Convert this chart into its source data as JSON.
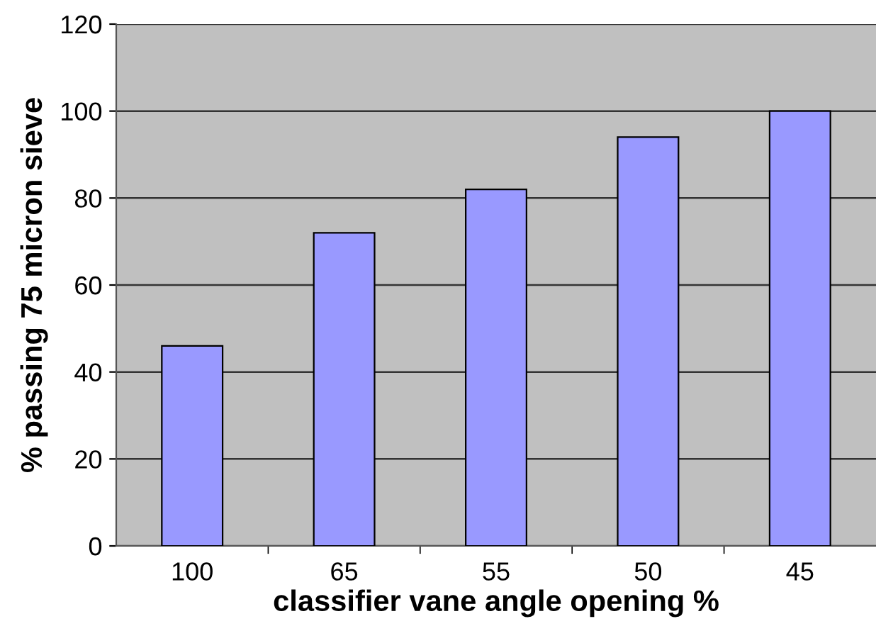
{
  "chart_data": {
    "type": "bar",
    "xlabel": "classifier vane angle opening %",
    "ylabel": "% passing 75 micron sieve",
    "categories": [
      "100",
      "65",
      "55",
      "50",
      "45"
    ],
    "values": [
      46,
      72,
      82,
      94,
      100
    ],
    "color": "#9999ff",
    "ylim": [
      0,
      120
    ],
    "yticks": [
      0,
      20,
      40,
      60,
      80,
      100,
      120
    ],
    "grid": "y",
    "legend": false
  }
}
